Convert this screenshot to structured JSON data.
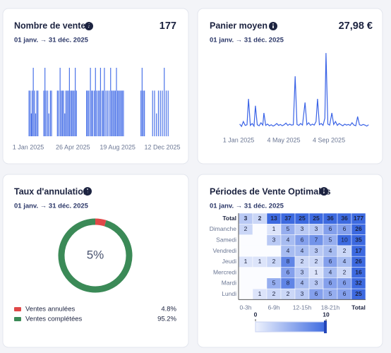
{
  "chart_data": [
    {
      "type": "bar",
      "title": "Nombre de ventes",
      "headline": 177,
      "subtitle": "01 janv. → 31 déc. 2025",
      "color": "#4a72e8",
      "x": [
        2,
        5,
        8,
        10,
        13,
        16,
        19,
        22,
        25,
        40,
        43,
        46,
        50,
        53,
        57,
        60,
        75,
        78,
        82,
        85,
        88,
        91,
        94,
        97,
        100,
        103,
        106,
        109,
        112,
        115,
        118,
        121,
        124,
        150,
        153,
        156,
        160,
        163,
        166,
        170,
        173,
        176,
        180,
        183,
        186,
        190,
        193,
        196,
        200,
        204,
        208,
        212,
        215,
        218,
        221,
        224,
        227,
        230,
        233,
        236,
        239,
        242,
        245,
        290,
        293,
        296,
        299,
        320,
        325,
        330,
        335,
        340,
        345,
        350,
        355,
        360
      ],
      "values": [
        2,
        2,
        1,
        2,
        3,
        2,
        1,
        2,
        2,
        2,
        3,
        2,
        2,
        1,
        2,
        2,
        2,
        2,
        3,
        2,
        2,
        2,
        1,
        2,
        2,
        2,
        3,
        2,
        2,
        2,
        2,
        3,
        2,
        2,
        2,
        2,
        3,
        2,
        2,
        2,
        3,
        2,
        2,
        2,
        3,
        2,
        2,
        3,
        2,
        2,
        2,
        3,
        2,
        2,
        2,
        2,
        3,
        2,
        2,
        2,
        2,
        2,
        2,
        2,
        3,
        2,
        2,
        2,
        2,
        1,
        2,
        2,
        2,
        3,
        2,
        2
      ],
      "xlim": [
        0,
        365
      ],
      "ylim": [
        0,
        3
      ],
      "xticks": [
        {
          "value": 0,
          "label": "1 Jan 2025"
        },
        {
          "value": 115,
          "label": "26 Apr 2025"
        },
        {
          "value": 230,
          "label": "19 Aug 2025"
        },
        {
          "value": 345,
          "label": "12 Dec 2025"
        }
      ]
    },
    {
      "type": "line",
      "title": "Panier moyen",
      "headline": "27,98 €",
      "subtitle": "01 janv. → 31 déc. 2025",
      "color": "#3a63e6",
      "x": [
        3,
        8,
        13,
        18,
        23,
        27,
        32,
        37,
        42,
        46,
        51,
        56,
        61,
        66,
        69,
        74,
        79,
        84,
        89,
        94,
        99,
        104,
        109,
        114,
        119,
        124,
        129,
        134,
        139,
        144,
        149,
        154,
        159,
        164,
        169,
        174,
        181,
        186,
        191,
        196,
        201,
        206,
        211,
        215,
        220,
        225,
        230,
        235,
        238,
        243,
        248,
        254,
        259,
        264,
        269,
        274,
        279,
        284,
        289,
        294,
        299,
        304,
        309,
        314,
        319,
        324,
        329,
        334,
        339,
        344,
        349,
        354
      ],
      "values": [
        22,
        15,
        30,
        18,
        20,
        99,
        18,
        24,
        16,
        78,
        20,
        17,
        26,
        19,
        56,
        18,
        22,
        17,
        20,
        16,
        19,
        24,
        18,
        21,
        17,
        20,
        25,
        18,
        22,
        19,
        20,
        168,
        21,
        18,
        24,
        19,
        88,
        20,
        26,
        18,
        22,
        19,
        30,
        99,
        20,
        24,
        18,
        40,
        239,
        22,
        19,
        56,
        21,
        30,
        18,
        24,
        20,
        17,
        22,
        19,
        21,
        18,
        26,
        19,
        17,
        45,
        20,
        18,
        21,
        19,
        16,
        20
      ],
      "xlim": [
        0,
        365
      ],
      "ylim": [
        0,
        250
      ],
      "xticks": [
        {
          "value": 0,
          "label": "1 Jan 2025"
        },
        {
          "value": 123,
          "label": "4 May 2025"
        },
        {
          "value": 246,
          "label": "4 Sep 2025"
        }
      ]
    },
    {
      "type": "pie",
      "title": "Taux d'annulation",
      "subtitle": "01 janv. → 31 déc. 2025",
      "center_label": "5%",
      "categories": [
        "Ventes annulées",
        "Ventes complétées"
      ],
      "values": [
        4.8,
        95.2
      ],
      "value_labels": [
        "4.8%",
        "95.2%"
      ],
      "colors": [
        "#e04848",
        "#3b8a57"
      ]
    },
    {
      "type": "heatmap",
      "title": "Périodes de Vente Optimales",
      "subtitle": "01 janv. → 31 déc. 2025",
      "color": "#3d6ae0",
      "x_categories": [
        "0-3h",
        null,
        "6-9h",
        null,
        "12-15h",
        null,
        "18-21h",
        null,
        "Total"
      ],
      "y_categories": [
        "Total",
        "Dimanche",
        "Samedi",
        "Vendredi",
        "Jeudi",
        "Mercredi",
        "Mardi",
        "Lundi"
      ],
      "values": [
        [
          3,
          2,
          13,
          37,
          25,
          25,
          36,
          36,
          177
        ],
        [
          2,
          null,
          1,
          5,
          3,
          3,
          6,
          6,
          26
        ],
        [
          null,
          null,
          3,
          4,
          6,
          7,
          5,
          10,
          35
        ],
        [
          null,
          null,
          null,
          4,
          4,
          3,
          4,
          2,
          17
        ],
        [
          1,
          1,
          2,
          8,
          2,
          2,
          6,
          4,
          26
        ],
        [
          null,
          null,
          null,
          6,
          3,
          1,
          4,
          2,
          16
        ],
        [
          null,
          null,
          5,
          8,
          4,
          3,
          6,
          6,
          32
        ],
        [
          null,
          1,
          2,
          2,
          3,
          6,
          5,
          6,
          25
        ]
      ],
      "clim": [
        0,
        10
      ],
      "colorbar_ticks": [
        0,
        10
      ]
    }
  ]
}
